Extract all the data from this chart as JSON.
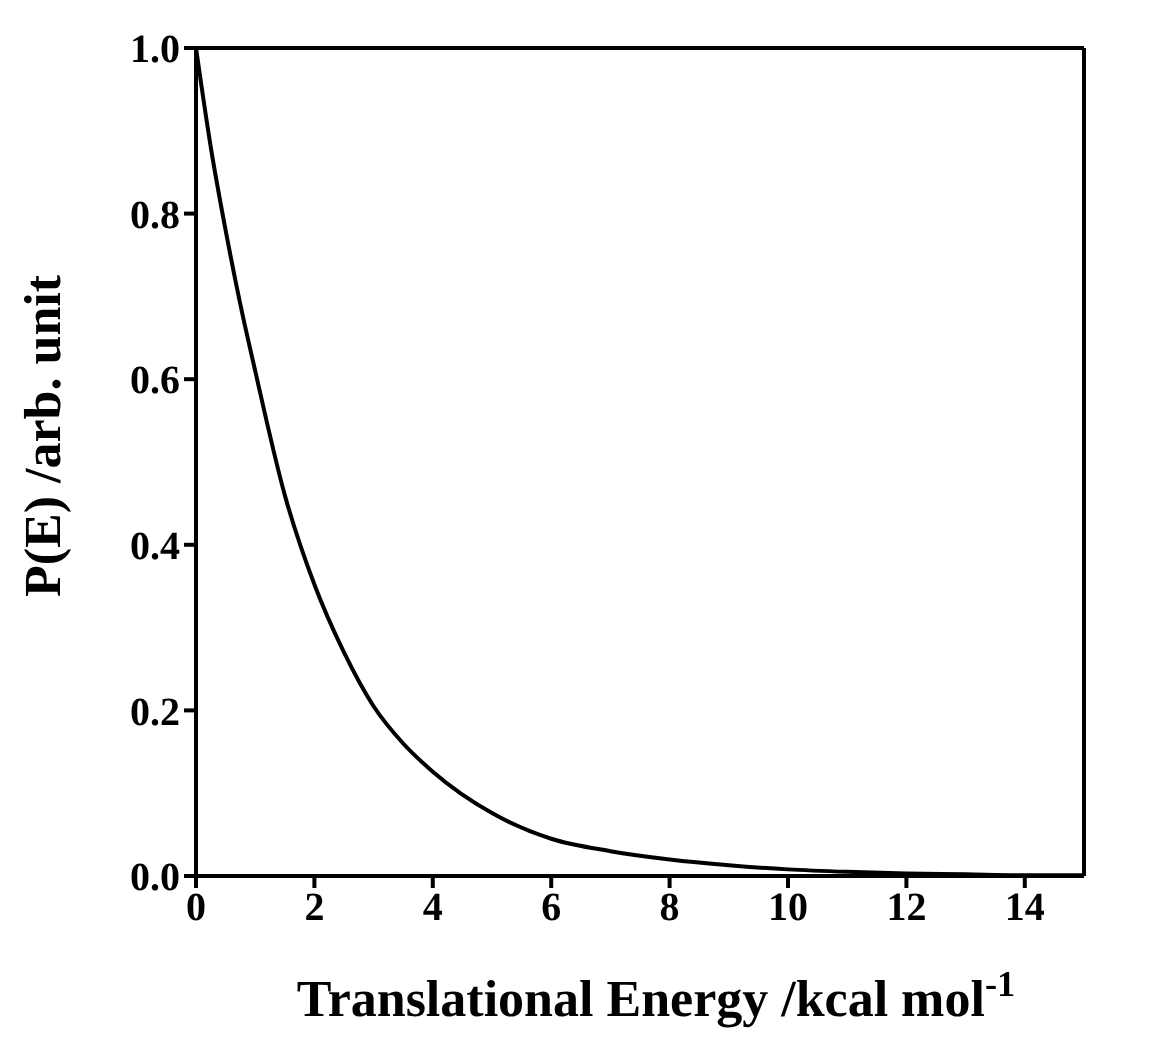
{
  "chart_data": {
    "type": "line",
    "xlabel": "Translational Energy /kcal mol$^{-1}$",
    "ylabel": "P(E) /arb. unit",
    "x": [
      0,
      0.25,
      0.5,
      0.75,
      1,
      1.5,
      2,
      2.5,
      3,
      3.5,
      4,
      5,
      6,
      7,
      8,
      9,
      10,
      11,
      12,
      13,
      14,
      15
    ],
    "series": [
      {
        "color": "#000000",
        "values": [
          1.0,
          0.88,
          0.78,
          0.69,
          0.61,
          0.46,
          0.352,
          0.27,
          0.205,
          0.16,
          0.126,
          0.076,
          0.045,
          0.03,
          0.02,
          0.013,
          0.008,
          0.005,
          0.003,
          0.002,
          0.001,
          0.001
        ]
      }
    ],
    "xlim": [
      0,
      15
    ],
    "xticks": [
      0,
      2,
      4,
      6,
      8,
      10,
      12,
      14
    ],
    "ylim": [
      0,
      1
    ],
    "yticks": [
      {
        "value": 0,
        "label": "0.0"
      },
      {
        "value": 0.2,
        "label": "0.2"
      },
      {
        "value": 0.4,
        "label": "0.4"
      },
      {
        "value": 0.6,
        "label": "0.6"
      },
      {
        "value": 0.8,
        "label": "0.8"
      },
      {
        "value": 1,
        "label": "1.0"
      }
    ],
    "marker": "none",
    "line_style": "solid",
    "grid": false,
    "legend": false
  }
}
